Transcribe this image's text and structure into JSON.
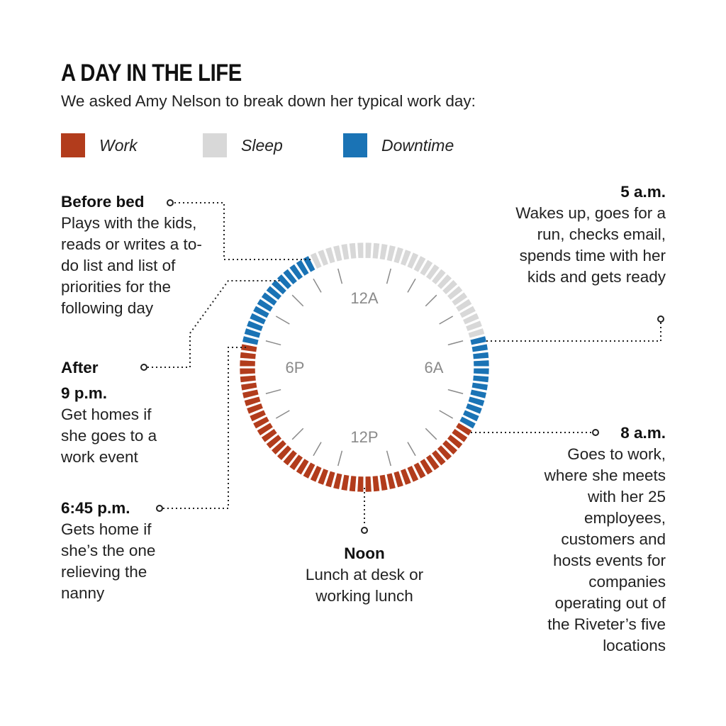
{
  "header": {
    "title": "A DAY IN THE LIFE",
    "subtitle": "We asked Amy Nelson to break down her typical work day:"
  },
  "legend": [
    {
      "label": "Work",
      "color": "#b23c1c"
    },
    {
      "label": "Sleep",
      "color": "#d8d8d8"
    },
    {
      "label": "Downtime",
      "color": "#1a73b5"
    }
  ],
  "annotations": {
    "before_bed": {
      "head": "Before bed",
      "text": "Plays with the kids, reads or writes a to-do list and list of priorities for the following day"
    },
    "after_9pm": {
      "head1": "After",
      "head2": "9 p.m.",
      "text": "Get homes if she goes to a work event"
    },
    "six45pm": {
      "head": "6:45 p.m.",
      "text": "Gets home if she’s the one relieving the nanny"
    },
    "five_am": {
      "head": "5 a.m.",
      "text": "Wakes up, goes for a run, checks email, spends time with her kids and gets ready"
    },
    "eight_am": {
      "head": "8 a.m.",
      "text": "Goes to work, where she meets with her 25 employees, customers and hosts events for companies operating out of the Riveter’s five locations"
    },
    "noon": {
      "head": "Noon",
      "text": "Lunch at desk or working lunch"
    }
  },
  "chart_data": {
    "type": "radial-timeline",
    "title": "A DAY IN THE LIFE",
    "hours_per_day": 24,
    "start_hour_at_top": 0,
    "clockwise": true,
    "hour_labels": [
      {
        "hour": 0,
        "label": "12A"
      },
      {
        "hour": 6,
        "label": "6A"
      },
      {
        "hour": 12,
        "label": "12P"
      },
      {
        "hour": 18,
        "label": "6P"
      }
    ],
    "segments": [
      {
        "activity": "Sleep",
        "start_hour": 22.25,
        "end_hour": 5
      },
      {
        "activity": "Downtime",
        "start_hour": 5,
        "end_hour": 8
      },
      {
        "activity": "Work",
        "start_hour": 8,
        "end_hour": 18.75
      },
      {
        "activity": "Downtime",
        "start_hour": 18.75,
        "end_hour": 22.25
      }
    ],
    "colors": {
      "Work": "#b23c1c",
      "Sleep": "#d8d8d8",
      "Downtime": "#1a73b5"
    }
  }
}
